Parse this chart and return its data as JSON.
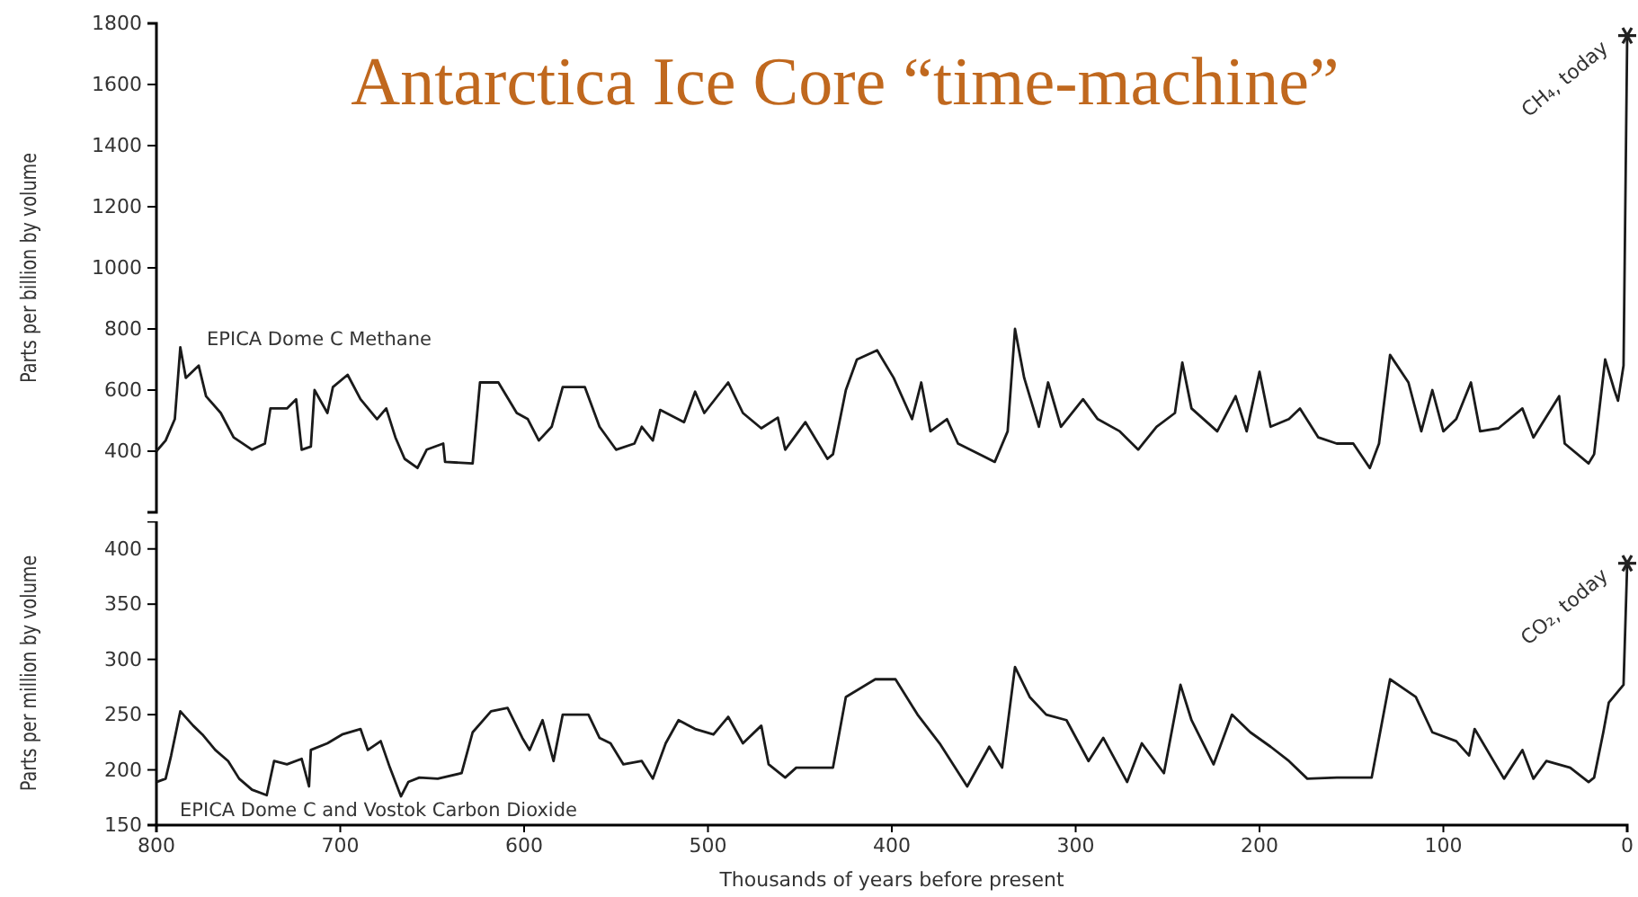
{
  "chart_data": [
    {
      "type": "line",
      "title": "Antarctica Ice Core “time-machine”",
      "ylabel": "Parts per billion by volume",
      "xlim": [
        800,
        0
      ],
      "ylim": [
        200,
        1800
      ],
      "yticks": [
        400,
        600,
        800,
        1000,
        1200,
        1400,
        1600,
        1800
      ],
      "tick_labels": "y",
      "grid": false,
      "series": [
        {
          "name": "EPICA Dome C Methane",
          "color": "#1a1a1a",
          "x": [
            800,
            795,
            790,
            787,
            784,
            777,
            773,
            765,
            758,
            748,
            741,
            738,
            729,
            724,
            721,
            716,
            714,
            707,
            704,
            696,
            689,
            680,
            675,
            670,
            665,
            658,
            653,
            644,
            643,
            628,
            624,
            614,
            604,
            598,
            592,
            585,
            579,
            567,
            559,
            550,
            540,
            536,
            530,
            526,
            513,
            507,
            502,
            489,
            481,
            471,
            462,
            458,
            447,
            435,
            432,
            425,
            419,
            408,
            399,
            389,
            384,
            379,
            370,
            364,
            344,
            337,
            333,
            328,
            320,
            315,
            308,
            296,
            288,
            276,
            266,
            256,
            246,
            242,
            237,
            223,
            213,
            207,
            200,
            194,
            184,
            178,
            168,
            158,
            149,
            140,
            135,
            129,
            119,
            112,
            106,
            100,
            93,
            85,
            80,
            70,
            57,
            51,
            37,
            34,
            21,
            18,
            12,
            7,
            5,
            2,
            0
          ],
          "values": [
            400,
            435,
            505,
            740,
            640,
            680,
            580,
            525,
            445,
            405,
            425,
            540,
            540,
            570,
            405,
            415,
            600,
            525,
            610,
            650,
            570,
            505,
            540,
            445,
            375,
            345,
            405,
            425,
            365,
            360,
            625,
            625,
            525,
            505,
            435,
            480,
            610,
            610,
            480,
            405,
            425,
            480,
            435,
            535,
            495,
            595,
            525,
            625,
            525,
            475,
            510,
            405,
            495,
            375,
            390,
            600,
            700,
            730,
            640,
            505,
            625,
            465,
            505,
            425,
            365,
            465,
            800,
            640,
            480,
            625,
            480,
            570,
            505,
            465,
            405,
            480,
            525,
            690,
            540,
            465,
            580,
            465,
            660,
            480,
            505,
            540,
            445,
            425,
            425,
            345,
            425,
            715,
            625,
            465,
            600,
            465,
            505,
            625,
            465,
            475,
            540,
            445,
            580,
            425,
            360,
            390,
            700,
            600,
            565,
            680,
            1760
          ]
        }
      ],
      "annotations": [
        {
          "text": "CH₄, today",
          "x": 0,
          "y": 1760
        }
      ]
    },
    {
      "type": "line",
      "ylabel": "Parts per million by volume",
      "xlabel": "Thousands of years before present",
      "xlim": [
        800,
        0
      ],
      "xticks": [
        800,
        700,
        600,
        500,
        400,
        300,
        200,
        100,
        0
      ],
      "ylim": [
        150,
        425
      ],
      "yticks": [
        150,
        200,
        250,
        300,
        350,
        400
      ],
      "grid": false,
      "series": [
        {
          "name": "EPICA Dome C and Vostok Carbon Dioxide",
          "color": "#1a1a1a",
          "x": [
            800,
            795,
            792,
            787,
            780,
            775,
            768,
            761,
            755,
            748,
            740,
            736,
            729,
            721,
            717,
            716,
            707,
            699,
            689,
            685,
            678,
            673,
            667,
            663,
            657,
            647,
            634,
            628,
            618,
            609,
            601,
            597,
            590,
            584,
            579,
            565,
            559,
            553,
            546,
            536,
            530,
            523,
            516,
            507,
            497,
            489,
            481,
            471,
            467,
            458,
            452,
            435,
            432,
            425,
            409,
            398,
            386,
            374,
            359,
            347,
            340,
            333,
            325,
            316,
            305,
            293,
            285,
            272,
            264,
            252,
            243,
            237,
            225,
            215,
            205,
            194,
            184,
            174,
            158,
            139,
            129,
            115,
            106,
            93,
            86,
            83,
            67,
            57,
            51,
            44,
            31,
            21,
            18,
            13,
            10,
            2,
            0
          ],
          "values": [
            189,
            192,
            213,
            253,
            240,
            232,
            218,
            208,
            192,
            182,
            177,
            208,
            205,
            210,
            185,
            218,
            224,
            232,
            237,
            218,
            226,
            202,
            176,
            189,
            193,
            192,
            197,
            234,
            253,
            256,
            229,
            218,
            245,
            208,
            250,
            250,
            229,
            224,
            205,
            208,
            192,
            224,
            245,
            237,
            232,
            248,
            224,
            240,
            205,
            193,
            202,
            202,
            202,
            266,
            282,
            282,
            250,
            224,
            185,
            221,
            202,
            293,
            266,
            250,
            245,
            208,
            229,
            189,
            224,
            197,
            277,
            245,
            205,
            250,
            234,
            221,
            208,
            192,
            193,
            193,
            282,
            266,
            234,
            226,
            213,
            237,
            192,
            218,
            192,
            208,
            202,
            189,
            193,
            234,
            261,
            277,
            387
          ]
        }
      ],
      "annotations": [
        {
          "text": "CO₂, today",
          "x": 0,
          "y": 387
        }
      ]
    }
  ]
}
